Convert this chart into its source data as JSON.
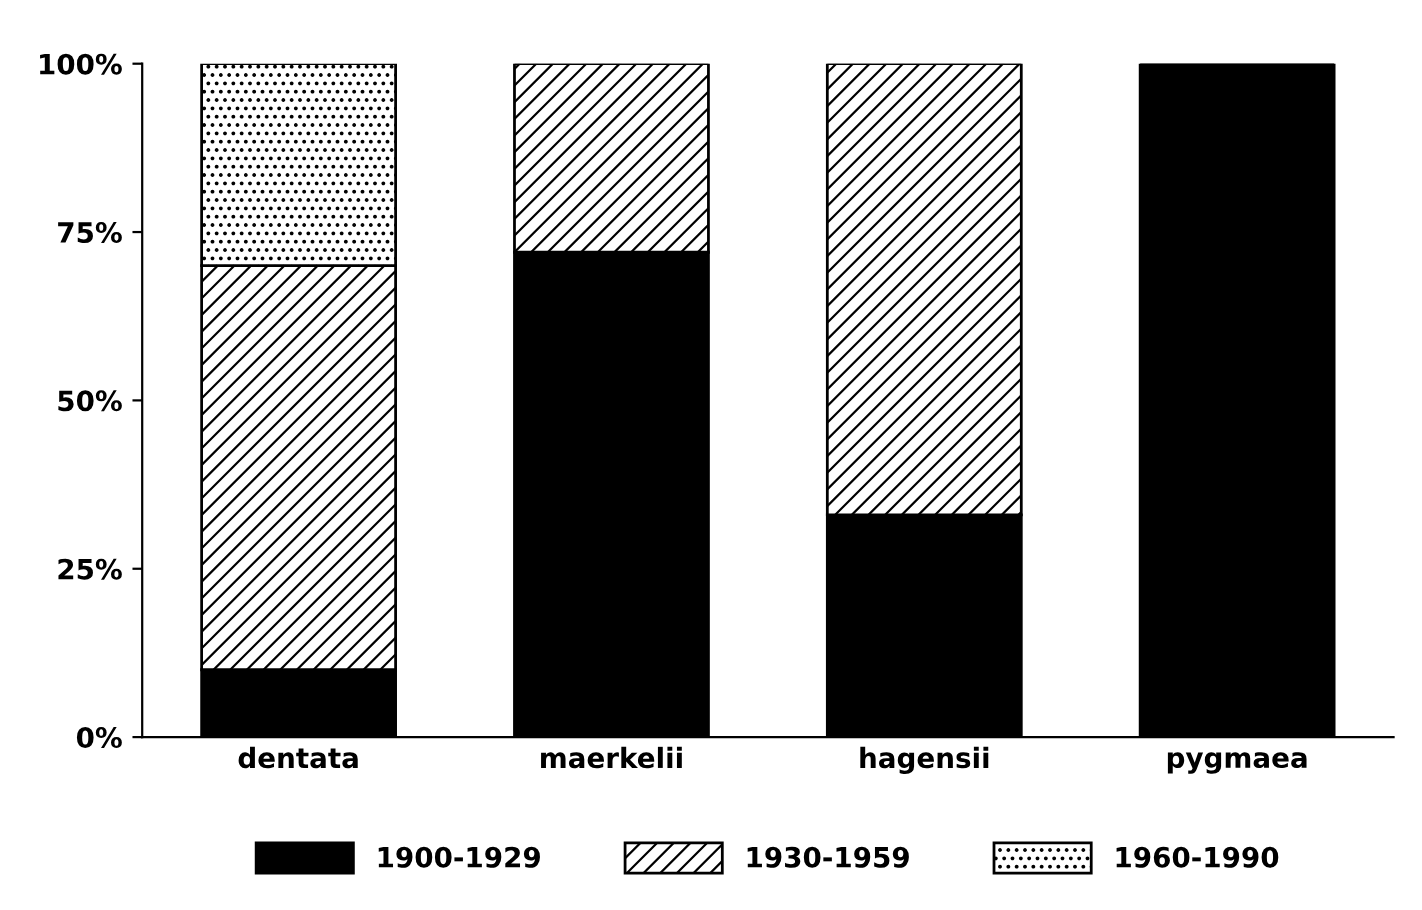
{
  "chart_data": {
    "type": "bar",
    "stacked": true,
    "categories": [
      "dentata",
      "maerkelii",
      "hagensii",
      "pygmaea"
    ],
    "series": [
      {
        "name": "1900-1929",
        "color": "#000000",
        "values": [
          10,
          72,
          33,
          100
        ]
      },
      {
        "name": "1930-1959",
        "color": "#000000",
        "values": [
          60,
          28,
          67,
          0
        ]
      },
      {
        "name": "1960-1990",
        "color": "#000000",
        "values": [
          30,
          0,
          0,
          0
        ]
      }
    ],
    "ylim": [
      0,
      100
    ],
    "yticks": [
      {
        "value": 0,
        "label": "0%"
      },
      {
        "value": 25,
        "label": "25%"
      },
      {
        "value": 50,
        "label": "50%"
      },
      {
        "value": 75,
        "label": "75%"
      },
      {
        "value": 100,
        "label": "100%"
      }
    ],
    "grid": false,
    "legend": "bottom"
  }
}
